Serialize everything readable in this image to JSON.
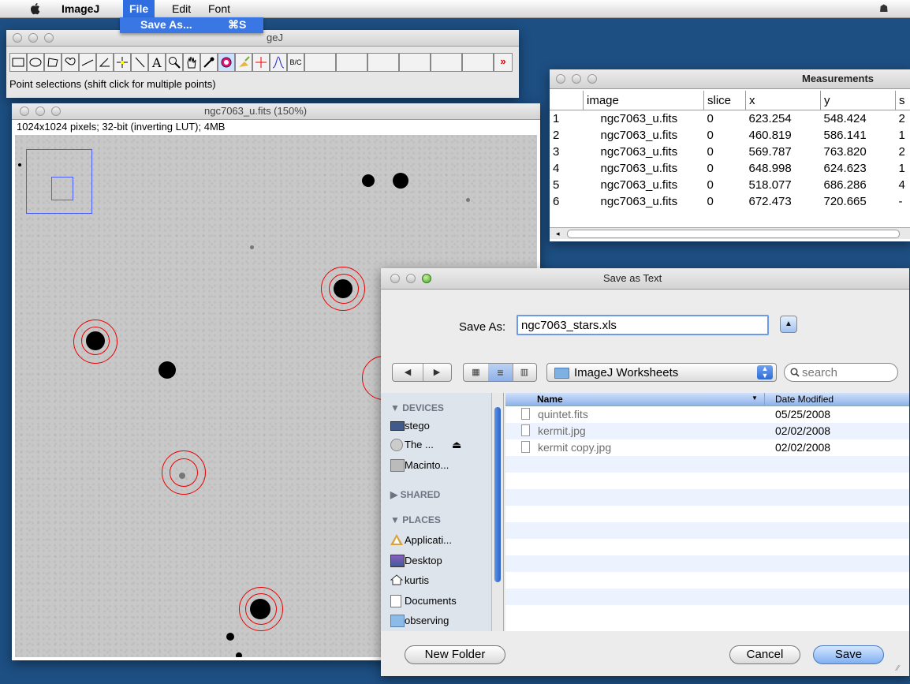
{
  "menubar": {
    "app_name": "ImageJ",
    "menus": [
      "File",
      "Edit",
      "Font"
    ],
    "active_menu": "File"
  },
  "file_menu": {
    "item_label": "Save As...",
    "item_shortcut": "⌘S"
  },
  "imagej_window": {
    "title_fragment": "geJ",
    "status": "Point selections (shift click for multiple points)",
    "tools": [
      "rectangle",
      "oval",
      "polygon",
      "freehand",
      "line",
      "angle",
      "point",
      "wand",
      "text",
      "magnifier",
      "hand",
      "dropper",
      "color",
      "brush",
      "crosshair",
      "arrow",
      "B/C",
      "more"
    ]
  },
  "image_window": {
    "title": "ngc7063_u.fits (150%)",
    "info": "1024x1024 pixels; 32-bit (inverting LUT); 4MB"
  },
  "measurements": {
    "title": "Measurements",
    "columns": [
      "",
      "image",
      "slice",
      "x",
      "y",
      "s"
    ],
    "rows": [
      [
        "1",
        "ngc7063_u.fits",
        "0",
        "623.254",
        "548.424",
        "2"
      ],
      [
        "2",
        "ngc7063_u.fits",
        "0",
        "460.819",
        "586.141",
        "1"
      ],
      [
        "3",
        "ngc7063_u.fits",
        "0",
        "569.787",
        "763.820",
        "2"
      ],
      [
        "4",
        "ngc7063_u.fits",
        "0",
        "648.998",
        "624.623",
        "1"
      ],
      [
        "5",
        "ngc7063_u.fits",
        "0",
        "518.077",
        "686.286",
        "4"
      ],
      [
        "6",
        "ngc7063_u.fits",
        "0",
        "672.473",
        "720.665",
        "-"
      ]
    ]
  },
  "save_dialog": {
    "title": "Save as Text",
    "save_as_label": "Save As:",
    "filename": "ngc7063_stars.xls",
    "location": "ImageJ Worksheets",
    "search_placeholder": "search",
    "sidebar": {
      "devices_header": "DEVICES",
      "devices": [
        "stego",
        "The ...",
        "Macinto..."
      ],
      "shared_header": "SHARED",
      "places_header": "PLACES",
      "places": [
        "Applicati...",
        "Desktop",
        "kurtis",
        "Documents",
        "observing"
      ]
    },
    "columns": {
      "name": "Name",
      "date": "Date Modified"
    },
    "files": [
      {
        "name": "quintet.fits",
        "date": "05/25/2008"
      },
      {
        "name": "kermit.jpg",
        "date": "02/02/2008"
      },
      {
        "name": "kermit copy.jpg",
        "date": "02/02/2008"
      }
    ],
    "new_folder_label": "New Folder",
    "cancel_label": "Cancel",
    "save_label": "Save"
  },
  "colors": {
    "desktop": "#1d4f83",
    "selection_blue": "#2f6ee0",
    "roi_red": "#ee0000"
  }
}
